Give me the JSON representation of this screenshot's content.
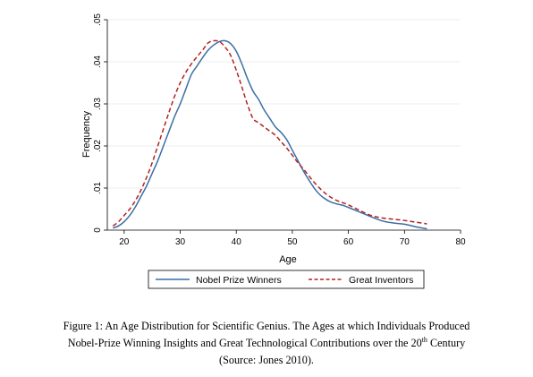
{
  "chart_data": {
    "type": "line",
    "xlabel": "Age",
    "ylabel": "Frequency",
    "xlim": [
      17,
      80
    ],
    "ylim": [
      0,
      0.05
    ],
    "x_ticks": [
      20,
      30,
      40,
      50,
      60,
      70,
      80
    ],
    "x_tick_labels": [
      "20",
      "30",
      "40",
      "50",
      "60",
      "70",
      "80"
    ],
    "y_ticks": [
      0,
      0.01,
      0.02,
      0.03,
      0.04,
      0.05
    ],
    "y_tick_labels": [
      "0",
      ".01",
      ".02",
      ".03",
      ".04",
      ".05"
    ],
    "grid": "horizontal",
    "legend_position": "bottom",
    "series": [
      {
        "name": "Nobel Prize Winners",
        "color": "#3a6ea5",
        "style": "solid",
        "x": [
          18,
          19,
          20,
          21,
          22,
          23,
          24,
          25,
          26,
          27,
          28,
          29,
          30,
          31,
          32,
          33,
          34,
          35,
          36,
          37,
          38,
          39,
          40,
          41,
          42,
          43,
          44,
          45,
          46,
          47,
          48,
          49,
          50,
          51,
          52,
          53,
          54,
          55,
          56,
          57,
          58,
          59,
          60,
          62,
          64,
          66,
          68,
          70,
          72,
          74
        ],
        "y": [
          0.0005,
          0.001,
          0.002,
          0.0035,
          0.0055,
          0.008,
          0.0105,
          0.0135,
          0.0165,
          0.02,
          0.0235,
          0.027,
          0.03,
          0.0335,
          0.037,
          0.039,
          0.041,
          0.0428,
          0.044,
          0.0448,
          0.045,
          0.0443,
          0.0425,
          0.0395,
          0.036,
          0.033,
          0.031,
          0.0285,
          0.0265,
          0.0245,
          0.0232,
          0.0215,
          0.019,
          0.0165,
          0.014,
          0.0118,
          0.0098,
          0.0083,
          0.0073,
          0.0066,
          0.0062,
          0.0059,
          0.0054,
          0.0043,
          0.0032,
          0.0022,
          0.0017,
          0.0014,
          0.0008,
          0.0003
        ]
      },
      {
        "name": "Great Inventors",
        "color": "#b22222",
        "style": "dashed",
        "x": [
          18,
          19,
          20,
          21,
          22,
          23,
          24,
          25,
          26,
          27,
          28,
          29,
          30,
          31,
          32,
          33,
          34,
          35,
          36,
          37,
          38,
          39,
          40,
          41,
          42,
          43,
          44,
          45,
          46,
          47,
          48,
          49,
          50,
          51,
          52,
          53,
          54,
          55,
          56,
          57,
          58,
          59,
          60,
          62,
          64,
          66,
          68,
          70,
          72,
          74
        ],
        "y": [
          0.001,
          0.002,
          0.0035,
          0.005,
          0.007,
          0.0095,
          0.0125,
          0.016,
          0.02,
          0.024,
          0.028,
          0.0318,
          0.035,
          0.0375,
          0.0395,
          0.0412,
          0.0428,
          0.0445,
          0.045,
          0.0448,
          0.0435,
          0.0415,
          0.038,
          0.034,
          0.0298,
          0.0265,
          0.0255,
          0.0245,
          0.0235,
          0.0225,
          0.021,
          0.0195,
          0.0178,
          0.016,
          0.0145,
          0.0128,
          0.0112,
          0.0098,
          0.0086,
          0.0077,
          0.007,
          0.0065,
          0.006,
          0.0047,
          0.0035,
          0.0029,
          0.0026,
          0.0023,
          0.0019,
          0.0015
        ]
      }
    ]
  },
  "caption": {
    "line1": "Figure 1:  An Age Distribution for Scientific Genius.  The Ages at which Individuals Produced",
    "line2_before": "Nobel-Prize Winning Insights and Great Technological Contributions over the 20",
    "line2_sup": "th",
    "line2_after": " Century",
    "line3": "(Source: Jones 2010)."
  }
}
